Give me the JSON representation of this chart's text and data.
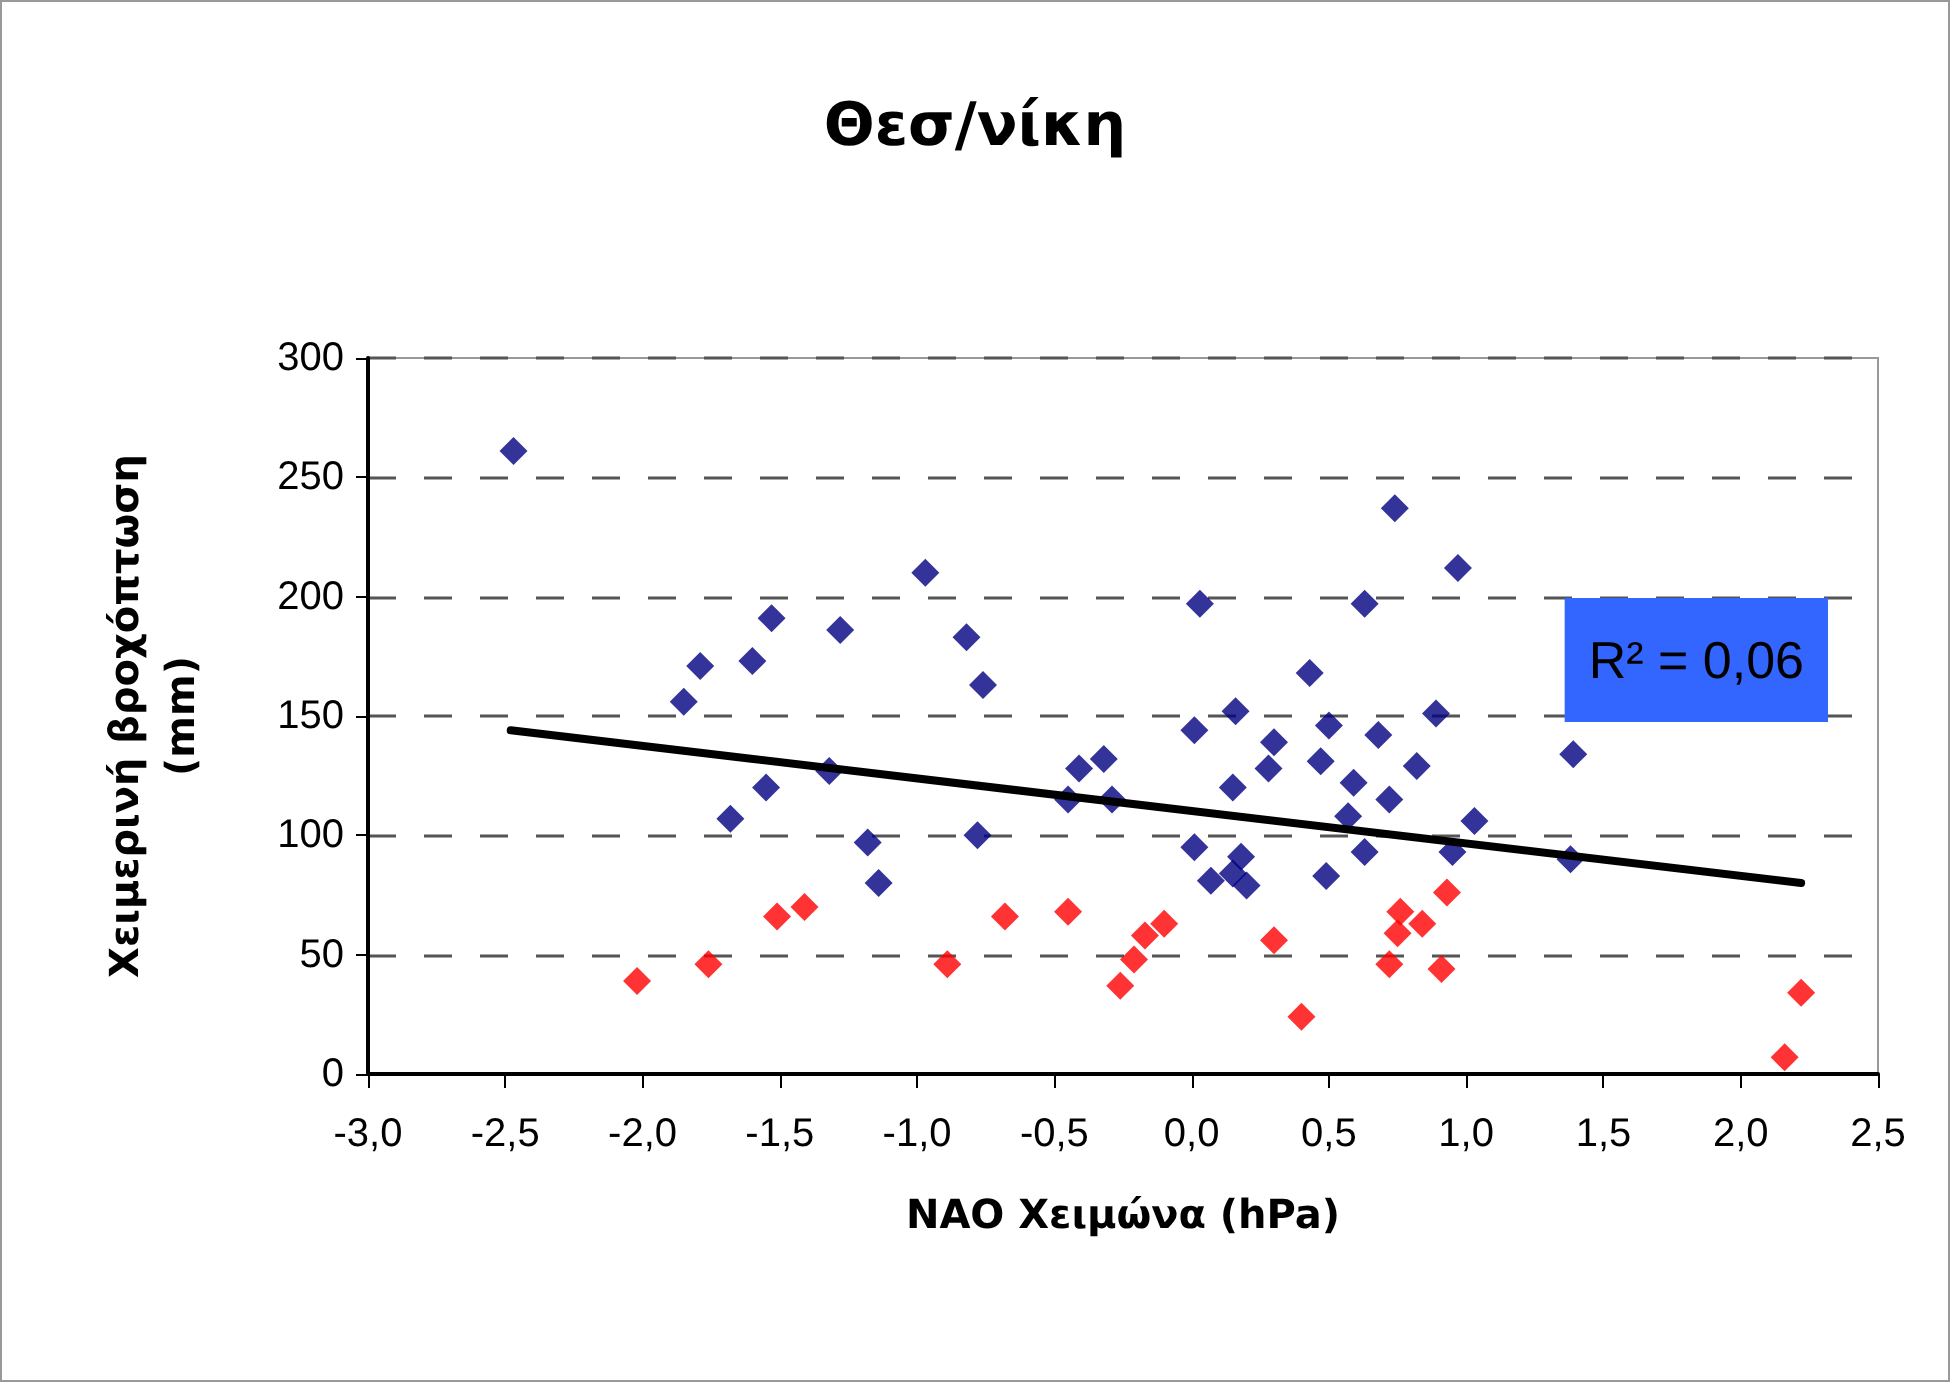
{
  "chart_data": {
    "type": "scatter",
    "title": "Θεσ/νίκη",
    "xlabel": "NAO Χειμώνα (hPa)",
    "ylabel": "Χειμερινή βροχόπτωση\n(mm)",
    "annotations": [
      "R² = 0,06"
    ],
    "xlim": [
      -3,
      2.5
    ],
    "xticks": [
      {
        "value": -3,
        "label": "-3,0"
      },
      {
        "value": -2.5,
        "label": "-2,5"
      },
      {
        "value": -2,
        "label": "-2,0"
      },
      {
        "value": -1.5,
        "label": "-1,5"
      },
      {
        "value": -1,
        "label": "-1,0"
      },
      {
        "value": -0.5,
        "label": "-0,5"
      },
      {
        "value": 0,
        "label": "0,0"
      },
      {
        "value": 0.5,
        "label": "0,5"
      },
      {
        "value": 1,
        "label": "1,0"
      },
      {
        "value": 1.5,
        "label": "1,5"
      },
      {
        "value": 2,
        "label": "2,0"
      },
      {
        "value": 2.5,
        "label": "2,5"
      }
    ],
    "ylim": [
      0,
      300
    ],
    "yticks": [
      0,
      50,
      100,
      150,
      200,
      250,
      300
    ],
    "grid": "y",
    "marker": "diamond",
    "series": [
      {
        "color": "#000080",
        "x": [
          -2.47,
          -1.85,
          -1.79,
          -1.6,
          -1.53,
          -1.28,
          -1.68,
          -1.55,
          -1.32,
          -1.18,
          -1.14,
          -0.97,
          -0.82,
          -0.76,
          -0.78,
          -0.45,
          -0.41,
          -0.32,
          -0.29,
          0.03,
          0.01,
          0.01,
          0.07,
          0.16,
          0.15,
          0.18,
          0.2,
          0.15,
          0.3,
          0.28,
          0.43,
          0.5,
          0.47,
          0.49,
          0.59,
          0.57,
          0.63,
          0.63,
          0.68,
          0.72,
          0.74,
          0.82,
          0.89,
          0.97,
          0.95,
          1.03,
          1.39,
          1.38
        ],
        "values": [
          261,
          156,
          171,
          173,
          191,
          186,
          107,
          120,
          127,
          97,
          80,
          210,
          183,
          163,
          100,
          115,
          128,
          132,
          115,
          197,
          144,
          95,
          81,
          152,
          120,
          91,
          79,
          84,
          139,
          128,
          168,
          146,
          131,
          83,
          122,
          108,
          197,
          93,
          142,
          115,
          237,
          129,
          151,
          212,
          93,
          106,
          134,
          90
        ]
      },
      {
        "color": "#ff0000",
        "x": [
          -2.02,
          -1.76,
          -1.51,
          -1.41,
          -0.89,
          -0.68,
          -0.45,
          -0.26,
          -0.21,
          -0.17,
          -0.1,
          0.3,
          0.4,
          0.72,
          0.76,
          0.75,
          0.84,
          0.91,
          0.93,
          2.22,
          2.16
        ],
        "values": [
          39,
          46,
          66,
          70,
          46,
          66,
          68,
          37,
          48,
          58,
          63,
          56,
          24,
          46,
          68,
          59,
          63,
          44,
          76,
          34,
          7
        ]
      },
      {
        "type": "line",
        "color": "#000000",
        "marker": "none",
        "line_style": "solid",
        "x": [
          -2.48,
          2.22
        ],
        "values": [
          144,
          80
        ]
      }
    ]
  }
}
